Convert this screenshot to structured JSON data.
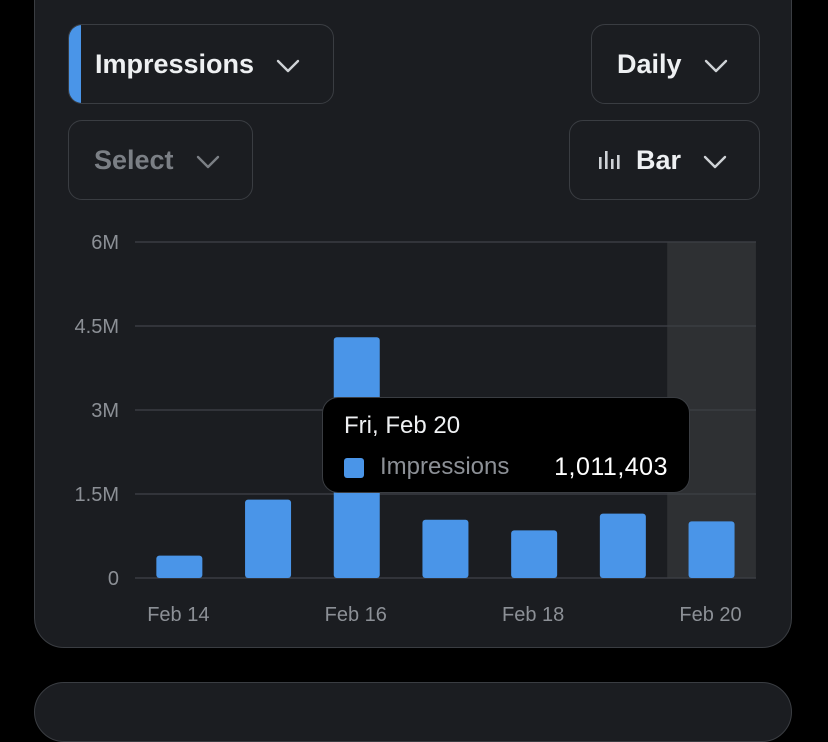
{
  "controls": {
    "metric_label": "Impressions",
    "period_label": "Daily",
    "select_placeholder": "Select",
    "chart_type_label": "Bar"
  },
  "colors": {
    "accent": "#4a95e8",
    "card_bg": "#1b1d21",
    "highlight_bg": "#2e3033"
  },
  "tooltip": {
    "date": "Fri, Feb 20",
    "series": "Impressions",
    "value": "1,011,403"
  },
  "chart_data": {
    "type": "bar",
    "categories": [
      "Feb 14",
      "Feb 15",
      "Feb 16",
      "Feb 17",
      "Feb 18",
      "Feb 19",
      "Feb 20"
    ],
    "x_tick_labels": [
      "Feb 14",
      "",
      "Feb 16",
      "",
      "Feb 18",
      "",
      "Feb 20"
    ],
    "series": [
      {
        "name": "Impressions",
        "values": [
          400000,
          1400000,
          4300000,
          1040000,
          850000,
          1150000,
          1011403
        ]
      }
    ],
    "y_ticks": [
      "0",
      "1.5M",
      "3M",
      "4.5M",
      "6M"
    ],
    "y_tick_values": [
      0,
      1500000,
      3000000,
      4500000,
      6000000
    ],
    "ylim": [
      0,
      6000000
    ],
    "highlighted_index": 6,
    "grid": true
  }
}
